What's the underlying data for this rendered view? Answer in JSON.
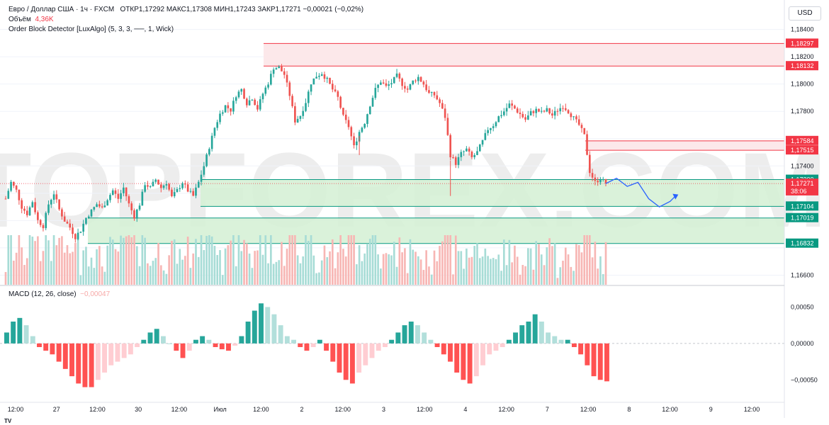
{
  "header": {
    "symbol": "Евро / Доллар США · 1ч · FXCM",
    "ohlc": "ОТКР1,17292  МАКС1,17308  МИН1,17243  ЗАКР1,17271  −0,00021 (−0,02%)",
    "volume_label": "Объём",
    "volume_value": "4,36K",
    "indicator": "Order Block Detector [LuxAlgo] (5, 3, 3, ──, 1, Wick)",
    "macd_label": "MACD (12, 26, close)",
    "macd_value": "−0,00047",
    "currency": "USD",
    "watermark": "TOPFOREX.COM"
  },
  "colors": {
    "up": "#26a69a",
    "down": "#ef5350",
    "zone_red": "#fce4e6",
    "zone_green": "#d3f0d4",
    "projection": "#2962ff"
  },
  "chart_data": [
    {
      "type": "candlestick",
      "price_axis": [
        "1,18400",
        "1,18200",
        "1,18000",
        "1,17800",
        "1,17400",
        "1,16600"
      ],
      "ylim": [
        1.1654,
        1.1846
      ],
      "time_axis": [
        "12:00",
        "27",
        "12:00",
        "30",
        "12:00",
        "Июл",
        "12:00",
        "2",
        "12:00",
        "3",
        "12:00",
        "4",
        "12:00",
        "7",
        "12:00",
        "8",
        "12:00",
        "9",
        "12:00"
      ],
      "price_tags": [
        {
          "label": "1,18297",
          "value": 1.18297,
          "color": "#f23645"
        },
        {
          "label": "1,18132",
          "value": 1.18132,
          "color": "#f23645"
        },
        {
          "label": "1,17584",
          "value": 1.17584,
          "color": "#f23645"
        },
        {
          "label": "1,17515",
          "value": 1.17515,
          "color": "#f23645"
        },
        {
          "label": "1,17300",
          "value": 1.173,
          "color": "#089981"
        },
        {
          "label": "1,17271",
          "value": 1.17271,
          "color": "#f23645"
        },
        {
          "label": "38:06",
          "value": 1.17215,
          "color": "#f23645"
        },
        {
          "label": "1,17104",
          "value": 1.17104,
          "color": "#089981"
        },
        {
          "label": "1,17019",
          "value": 1.17019,
          "color": "#089981"
        },
        {
          "label": "1,16832",
          "value": 1.16832,
          "color": "#089981"
        }
      ],
      "order_blocks": [
        {
          "kind": "bearish",
          "top": 1.18297,
          "bottom": 1.18132
        },
        {
          "kind": "bearish",
          "top": 1.17584,
          "bottom": 1.17515
        },
        {
          "kind": "bullish",
          "top": 1.173,
          "bottom": 1.17104
        },
        {
          "kind": "bullish",
          "top": 1.17019,
          "bottom": 1.16832
        }
      ],
      "close_path": [
        [
          0,
          1.1716
        ],
        [
          2,
          1.1728
        ],
        [
          4,
          1.1722
        ],
        [
          6,
          1.171
        ],
        [
          8,
          1.1705
        ],
        [
          10,
          1.1714
        ],
        [
          12,
          1.17
        ],
        [
          14,
          1.1696
        ],
        [
          16,
          1.1712
        ],
        [
          18,
          1.172
        ],
        [
          20,
          1.1708
        ],
        [
          22,
          1.17
        ],
        [
          24,
          1.1695
        ],
        [
          26,
          1.1688
        ],
        [
          28,
          1.1693
        ],
        [
          30,
          1.1702
        ],
        [
          32,
          1.1707
        ],
        [
          34,
          1.1712
        ],
        [
          36,
          1.1709
        ],
        [
          38,
          1.1716
        ],
        [
          40,
          1.1722
        ],
        [
          42,
          1.1716
        ],
        [
          44,
          1.1724
        ],
        [
          46,
          1.1712
        ],
        [
          48,
          1.1703
        ],
        [
          50,
          1.1712
        ],
        [
          52,
          1.1727
        ],
        [
          54,
          1.1724
        ],
        [
          56,
          1.173
        ],
        [
          58,
          1.1724
        ],
        [
          60,
          1.1728
        ],
        [
          62,
          1.1717
        ],
        [
          64,
          1.1722
        ],
        [
          66,
          1.1728
        ],
        [
          68,
          1.1722
        ],
        [
          70,
          1.1718
        ],
        [
          72,
          1.1728
        ],
        [
          74,
          1.174
        ],
        [
          76,
          1.1754
        ],
        [
          78,
          1.1768
        ],
        [
          80,
          1.1778
        ],
        [
          82,
          1.1784
        ],
        [
          84,
          1.1781
        ],
        [
          86,
          1.1792
        ],
        [
          88,
          1.1796
        ],
        [
          90,
          1.1786
        ],
        [
          92,
          1.179
        ],
        [
          94,
          1.1782
        ],
        [
          96,
          1.1793
        ],
        [
          98,
          1.1801
        ],
        [
          100,
          1.1812
        ],
        [
          102,
          1.1812
        ],
        [
          104,
          1.1807
        ],
        [
          106,
          1.1792
        ],
        [
          108,
          1.1773
        ],
        [
          110,
          1.1777
        ],
        [
          112,
          1.1787
        ],
        [
          114,
          1.1801
        ],
        [
          116,
          1.1806
        ],
        [
          118,
          1.1808
        ],
        [
          120,
          1.1803
        ],
        [
          122,
          1.1796
        ],
        [
          124,
          1.179
        ],
        [
          126,
          1.1776
        ],
        [
          128,
          1.1769
        ],
        [
          130,
          1.1754
        ],
        [
          132,
          1.1765
        ],
        [
          134,
          1.1772
        ],
        [
          136,
          1.1785
        ],
        [
          138,
          1.1796
        ],
        [
          140,
          1.1802
        ],
        [
          142,
          1.1798
        ],
        [
          144,
          1.1801
        ],
        [
          146,
          1.1806
        ],
        [
          148,
          1.18
        ],
        [
          150,
          1.1796
        ],
        [
          152,
          1.1802
        ],
        [
          154,
          1.1805
        ],
        [
          156,
          1.18
        ],
        [
          158,
          1.1793
        ],
        [
          160,
          1.1792
        ],
        [
          162,
          1.1786
        ],
        [
          164,
          1.1776
        ],
        [
          166,
          1.1748
        ],
        [
          168,
          1.1742
        ],
        [
          170,
          1.1749
        ],
        [
          172,
          1.1752
        ],
        [
          174,
          1.1746
        ],
        [
          176,
          1.175
        ],
        [
          178,
          1.1758
        ],
        [
          180,
          1.1767
        ],
        [
          182,
          1.177
        ],
        [
          184,
          1.1776
        ],
        [
          186,
          1.178
        ],
        [
          188,
          1.1785
        ],
        [
          190,
          1.1782
        ],
        [
          192,
          1.1778
        ],
        [
          194,
          1.1774
        ],
        [
          196,
          1.1779
        ],
        [
          198,
          1.1781
        ],
        [
          200,
          1.1779
        ],
        [
          202,
          1.1781
        ],
        [
          204,
          1.1777
        ],
        [
          206,
          1.1781
        ],
        [
          208,
          1.1784
        ],
        [
          210,
          1.178
        ],
        [
          212,
          1.1775
        ],
        [
          214,
          1.177
        ],
        [
          216,
          1.1762
        ],
        [
          218,
          1.1736
        ],
        [
          220,
          1.1728
        ],
        [
          222,
          1.1731
        ],
        [
          224,
          1.1727
        ]
      ],
      "projection_path": [
        [
          224,
          1.17271
        ],
        [
          228,
          1.1731
        ],
        [
          232,
          1.1725
        ],
        [
          236,
          1.1728
        ],
        [
          240,
          1.1716
        ],
        [
          244,
          1.171
        ],
        [
          248,
          1.1714
        ],
        [
          250,
          1.1718
        ]
      ],
      "volume_bars_count": 226,
      "macd": {
        "axis": [
          "0,00050",
          "0,00000",
          "−0,00050"
        ],
        "ylim": [
          -0.00075,
          0.00065
        ],
        "values": [
          0.00015,
          0.0003,
          0.00035,
          0.00025,
          0.0001,
          -5e-05,
          -0.0001,
          -0.00015,
          -0.00025,
          -0.00035,
          -0.00045,
          -0.00055,
          -0.0006,
          -0.0006,
          -0.0005,
          -0.0004,
          -0.0003,
          -0.00025,
          -0.0002,
          -0.00015,
          -5e-05,
          5e-05,
          0.00015,
          0.0002,
          0.0001,
          0.0,
          -0.0001,
          -0.0002,
          -0.0001,
          5e-05,
          0.0001,
          5e-05,
          -5e-05,
          -8e-05,
          -0.0001,
          -3e-05,
          0.0001,
          0.0003,
          0.00045,
          0.00055,
          0.0005,
          0.0004,
          0.00025,
          0.0001,
          5e-05,
          -5e-05,
          -0.0001,
          -5e-05,
          5e-05,
          -0.0001,
          -0.00025,
          -0.0004,
          -0.0005,
          -0.00055,
          -0.0004,
          -0.0003,
          -0.0002,
          -0.0001,
          -5e-05,
          5e-05,
          0.00015,
          0.00025,
          0.0003,
          0.00025,
          0.00015,
          5e-05,
          -5e-05,
          -0.00015,
          -0.00025,
          -0.0004,
          -0.0005,
          -0.00055,
          -0.00045,
          -0.0003,
          -0.00015,
          -0.0001,
          -5e-05,
          5e-05,
          0.00015,
          0.00025,
          0.0003,
          0.0004,
          0.0003,
          0.00015,
          0.0001,
          5e-05,
          5e-05,
          -5e-05,
          -0.00015,
          -0.0003,
          -0.00045,
          -0.0005,
          -0.00052
        ]
      }
    }
  ]
}
